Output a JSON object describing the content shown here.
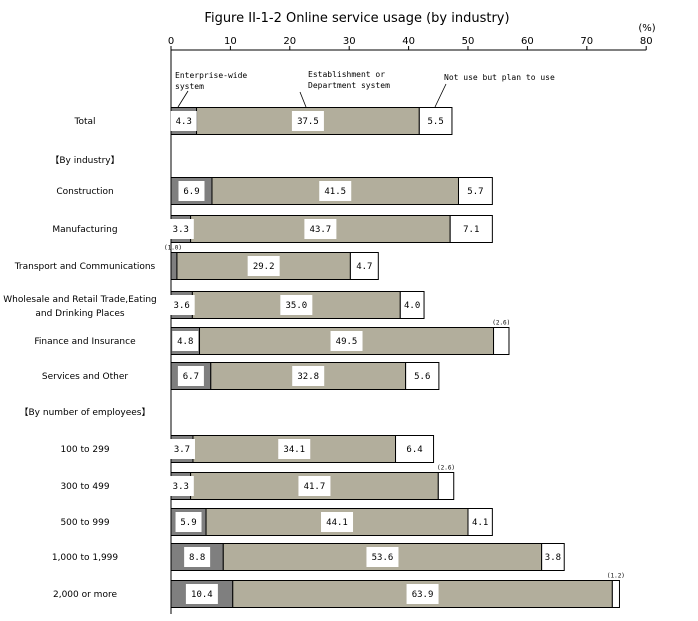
{
  "chart_data": {
    "type": "bar",
    "orientation": "horizontal",
    "stacked": true,
    "title": "Figure II-1-2 Online service usage (by industry)",
    "unit_label": "(%)",
    "xlim": [
      0,
      80
    ],
    "x_ticks": [
      "0",
      "10",
      "20",
      "30",
      "40",
      "50",
      "60",
      "70",
      "80"
    ],
    "grid": false,
    "annotations": [
      "Enterprise-wide system",
      "Establishment or Department system",
      "Not use but plan to use"
    ],
    "colors": {
      "enterprise": "#7f7f7f",
      "establishment": "#b2ae9c",
      "plan": "#ffffff",
      "outline": "#000000"
    },
    "rows": [
      {
        "label": "Total",
        "values": [
          4.3,
          37.5,
          5.5
        ],
        "labels": [
          "4.3",
          "37.5",
          "5.5"
        ]
      },
      {
        "label": "【By industry】",
        "header": true
      },
      {
        "label": "Construction",
        "values": [
          6.9,
          41.5,
          5.7
        ],
        "labels": [
          "6.9",
          "41.5",
          "5.7"
        ]
      },
      {
        "label": "Manufacturing",
        "values": [
          3.3,
          43.7,
          7.1
        ],
        "labels": [
          "3.3",
          "43.7",
          "7.1"
        ]
      },
      {
        "label": "Transport and Communications",
        "values": [
          1.0,
          29.2,
          4.7
        ],
        "labels": [
          "(1.0)",
          "29.2",
          "4.7"
        ]
      },
      {
        "label": "Wholesale and Retail Trade,Eating and Drinking Places",
        "values": [
          3.6,
          35.0,
          4.0
        ],
        "labels": [
          "3.6",
          "35.0",
          "4.0"
        ]
      },
      {
        "label": "Finance and Insurance",
        "values": [
          4.8,
          49.5,
          2.6
        ],
        "labels": [
          "4.8",
          "49.5",
          "(2.6)"
        ]
      },
      {
        "label": "Services and Other",
        "values": [
          6.7,
          32.8,
          5.6
        ],
        "labels": [
          "6.7",
          "32.8",
          "5.6"
        ]
      },
      {
        "label": "【By number of employees】",
        "header": true
      },
      {
        "label": "100 to 299",
        "values": [
          3.7,
          34.1,
          6.4
        ],
        "labels": [
          "3.7",
          "34.1",
          "6.4"
        ]
      },
      {
        "label": "300 to 499",
        "values": [
          3.3,
          41.7,
          2.6
        ],
        "labels": [
          "3.3",
          "41.7",
          "(2.6)"
        ]
      },
      {
        "label": "500 to 999",
        "values": [
          5.9,
          44.1,
          4.1
        ],
        "labels": [
          "5.9",
          "44.1",
          "4.1"
        ]
      },
      {
        "label": "1,000 to 1,999",
        "values": [
          8.8,
          53.6,
          3.8
        ],
        "labels": [
          "8.8",
          "53.6",
          "3.8"
        ]
      },
      {
        "label": "2,000 or more",
        "values": [
          10.4,
          63.9,
          1.2
        ],
        "labels": [
          "10.4",
          "63.9",
          "(1.2)"
        ]
      }
    ]
  }
}
